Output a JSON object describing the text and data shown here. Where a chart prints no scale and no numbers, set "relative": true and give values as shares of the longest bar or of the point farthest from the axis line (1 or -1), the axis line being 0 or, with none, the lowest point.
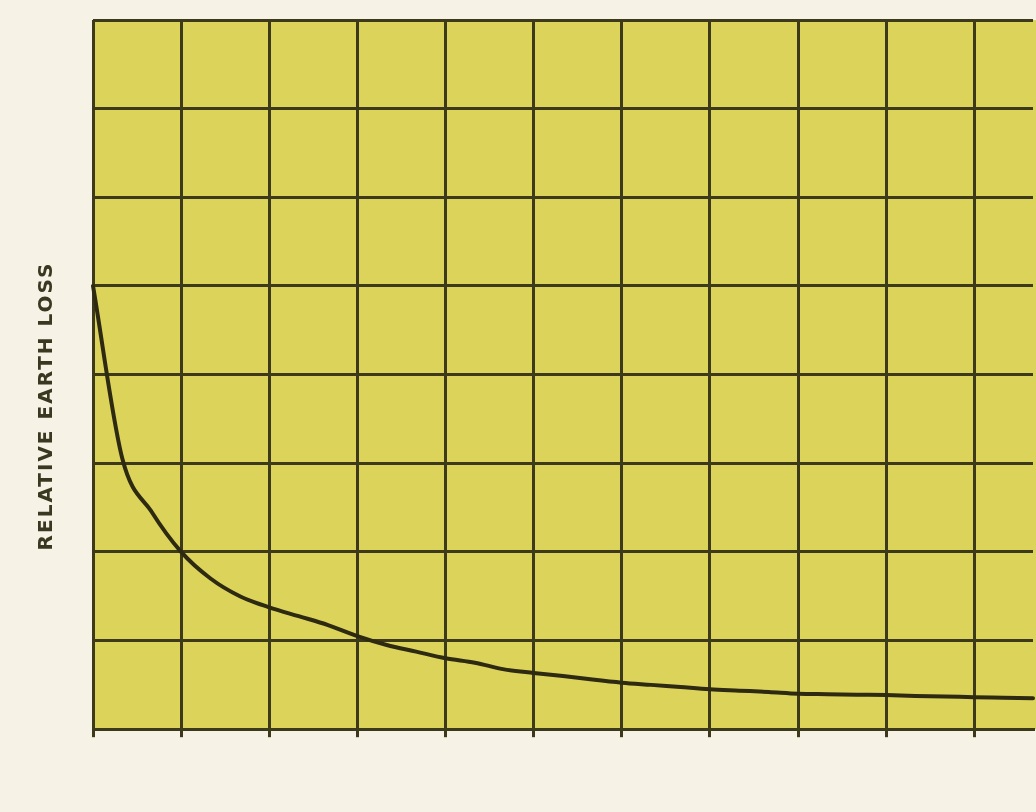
{
  "chart_data": {
    "type": "line",
    "ylabel": "RELATIVE EARTH LOSS",
    "relative": true,
    "grid": true,
    "marker": "none",
    "line_style": "solid",
    "categories": [
      null,
      null,
      null,
      null,
      null,
      null,
      null,
      null,
      null,
      null,
      null,
      null,
      null,
      null,
      null,
      null,
      null,
      null,
      null,
      null,
      null,
      null,
      null,
      null,
      null,
      null,
      null,
      null,
      null,
      null,
      null,
      null,
      null
    ],
    "series": [
      {
        "color": "#2e2a12",
        "values": [
          1.0,
          0.61,
          0.49,
          0.4,
          0.34,
          0.3,
          0.275,
          0.255,
          0.235,
          0.21,
          0.19,
          0.175,
          0.16,
          0.15,
          0.135,
          0.127,
          0.12,
          0.112,
          0.105,
          0.1,
          0.095,
          0.09,
          0.087,
          0.084,
          0.08,
          0.079,
          0.078,
          0.077,
          0.075,
          0.074,
          0.072,
          0.071,
          0.07
        ]
      }
    ]
  }
}
